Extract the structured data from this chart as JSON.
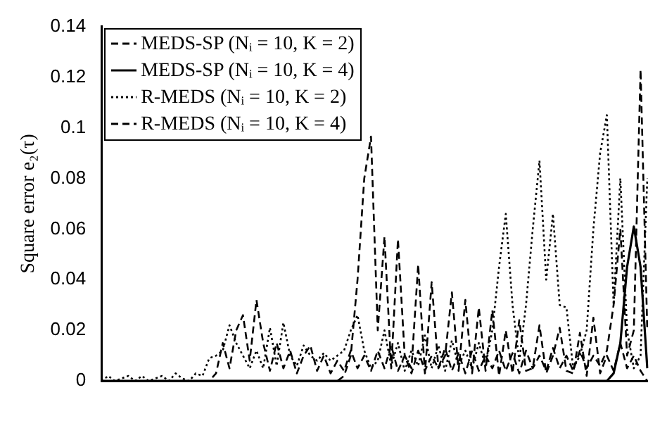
{
  "chart_data": {
    "type": "line",
    "ylabel": "Square error e₂(τ)",
    "categories": [
      null,
      null,
      null,
      null,
      null,
      null,
      null,
      null,
      null,
      null,
      null,
      null,
      null,
      null,
      null,
      null,
      null,
      null,
      null,
      null,
      null,
      null,
      null,
      null,
      null,
      null,
      null,
      null,
      null,
      null,
      null,
      null,
      null,
      null,
      null,
      null,
      null,
      null,
      null,
      null,
      null,
      null,
      null,
      null,
      null,
      null,
      null,
      null,
      null,
      null,
      null,
      null,
      null,
      null,
      null,
      null,
      null,
      null,
      null,
      null,
      null,
      null,
      null,
      null,
      null,
      null,
      null,
      null,
      null,
      null,
      null,
      null,
      null,
      null,
      null,
      null,
      null,
      null,
      null,
      null,
      null,
      null
    ],
    "series": [
      {
        "name": "MEDS-SP (Nᵢ = 10, K = 2)",
        "color": "#000000",
        "line_style": "dashed",
        "values": [
          0,
          0,
          0,
          0,
          0,
          0,
          0,
          0,
          0,
          0,
          0,
          0,
          0,
          0,
          0,
          0,
          0,
          0,
          0,
          0,
          0,
          0,
          0,
          0,
          0,
          0,
          0,
          0,
          0,
          0,
          0,
          0,
          0,
          0,
          0,
          0,
          0.002,
          0.01,
          0.04,
          0.08,
          0.0965,
          0.02,
          0.057,
          0.005,
          0.056,
          0.01,
          0.005,
          0.046,
          0.003,
          0.039,
          0.005,
          0.01,
          0.035,
          0.004,
          0.032,
          0.003,
          0.029,
          0.004,
          0.028,
          0.002,
          0.02,
          0.003,
          0.024,
          0.004,
          0.005,
          0.022,
          0.003,
          0.01,
          0.021,
          0.004,
          0.003,
          0.019,
          0.002,
          0.025,
          0.003,
          0.01,
          0.004,
          0.015,
          0.005,
          0.01,
          0.004,
          0
        ]
      },
      {
        "name": "MEDS-SP (Nᵢ = 10, K = 4)",
        "color": "#000000",
        "line_style": "solid",
        "values": [
          0,
          0,
          0,
          0,
          0,
          0,
          0,
          0,
          0,
          0,
          0,
          0,
          0,
          0,
          0,
          0,
          0,
          0,
          0,
          0,
          0,
          0,
          0,
          0,
          0,
          0,
          0,
          0,
          0,
          0,
          0,
          0,
          0,
          0,
          0,
          0,
          0,
          0,
          0,
          0,
          0,
          0,
          0,
          0,
          0,
          0,
          0,
          0,
          0,
          0,
          0,
          0,
          0,
          0,
          0,
          0,
          0,
          0,
          0,
          0,
          0,
          0,
          0,
          0,
          0,
          0,
          0,
          0,
          0,
          0,
          0,
          0,
          0,
          0,
          0,
          0,
          0.003,
          0.015,
          0.045,
          0.061,
          0.045,
          0.005
        ]
      },
      {
        "name": "R-MEDS (Nᵢ = 10, K = 2)",
        "color": "#000000",
        "line_style": "dotted",
        "values": [
          0,
          0.002,
          0,
          0.001,
          0.002,
          0,
          0.002,
          0,
          0.001,
          0.002,
          0,
          0.003,
          0.001,
          0,
          0.003,
          0.002,
          0.009,
          0.01,
          0.012,
          0.022,
          0.015,
          0.01,
          0.005,
          0.012,
          0.005,
          0.021,
          0.006,
          0.023,
          0.01,
          0.006,
          0.014,
          0.01,
          0.008,
          0.011,
          0.008,
          0.01,
          0.012,
          0.02,
          0.026,
          0.012,
          0.005,
          0.008,
          0.02,
          0.006,
          0.015,
          0.004,
          0.012,
          0.006,
          0.018,
          0.005,
          0.014,
          0.004,
          0.016,
          0.006,
          0.012,
          0.005,
          0.015,
          0.006,
          0.02,
          0.045,
          0.066,
          0.03,
          0.008,
          0.03,
          0.06,
          0.087,
          0.04,
          0.066,
          0.03,
          0.029,
          0.005,
          0.01,
          0.02,
          0.06,
          0.09,
          0.105,
          0.03,
          0.08,
          0.02,
          0.005,
          0.01,
          0.08
        ]
      },
      {
        "name": "R-MEDS (Nᵢ = 10, K = 4)",
        "color": "#000000",
        "line_style": "dashed",
        "values": [
          0,
          0,
          0,
          0,
          0,
          0,
          0,
          0,
          0,
          0,
          0,
          0,
          0,
          0,
          0,
          0,
          0,
          0.003,
          0.015,
          0.005,
          0.02,
          0.026,
          0.008,
          0.032,
          0.015,
          0.004,
          0.015,
          0.005,
          0.012,
          0.003,
          0.01,
          0.014,
          0.004,
          0.01,
          0.003,
          0.008,
          0.004,
          0.012,
          0.005,
          0.01,
          0.004,
          0.012,
          0.005,
          0.014,
          0.004,
          0.01,
          0.003,
          0.012,
          0.004,
          0.01,
          0.005,
          0.013,
          0.004,
          0.011,
          0.003,
          0.012,
          0.004,
          0.01,
          0.005,
          0.012,
          0.004,
          0.011,
          0.003,
          0.012,
          0.005,
          0.01,
          0.004,
          0.013,
          0.005,
          0.01,
          0.004,
          0.012,
          0.005,
          0.01,
          0.006,
          0.012,
          0.03,
          0.06,
          0.01,
          0.02,
          0.123,
          0.02
        ]
      }
    ],
    "ylim": [
      0,
      0.14
    ],
    "yticks": [
      0,
      0.02,
      0.04,
      0.06,
      0.08,
      0.1,
      0.12,
      0.14
    ],
    "grid": false,
    "legend": "top left",
    "marker": "none"
  }
}
